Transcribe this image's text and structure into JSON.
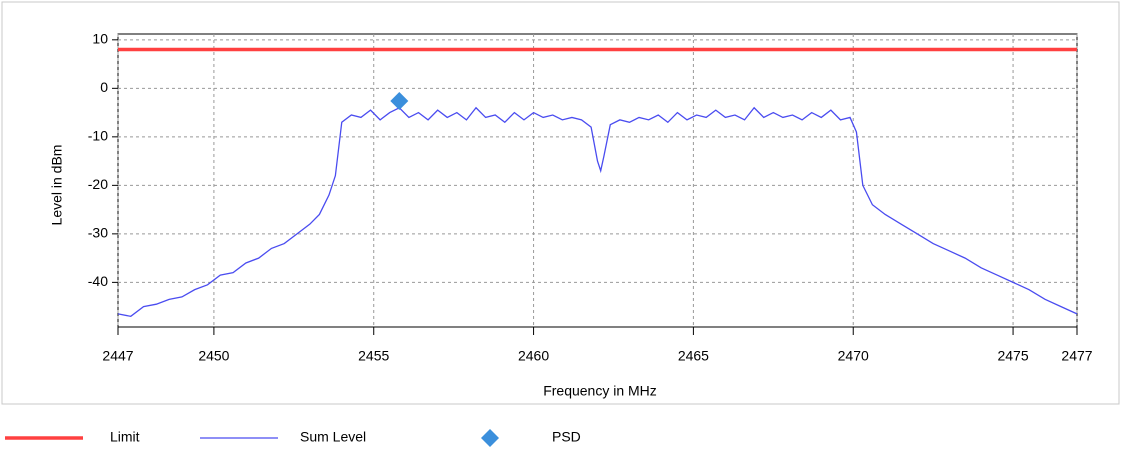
{
  "chart_data": {
    "type": "line",
    "x_label": "Frequency in MHz",
    "y_label": "Level in dBm",
    "xlim": [
      2447,
      2477
    ],
    "ylim": [
      -49.2,
      11.2
    ],
    "xticks": [
      2447,
      2450,
      2455,
      2460,
      2465,
      2470,
      2475,
      2477
    ],
    "yticks": [
      10,
      0,
      -10,
      -20,
      -30,
      -40
    ],
    "grid": true,
    "legend": "bottom",
    "series": [
      {
        "name": "Limit",
        "color": "#ff4040",
        "marker": "none",
        "x": [
          2447,
          2477
        ],
        "values": [
          8,
          8
        ]
      },
      {
        "name": "Sum Level",
        "color": "#4a4cf0",
        "marker": "none",
        "x": [
          2447,
          2447.4,
          2447.8,
          2448.2,
          2448.6,
          2449,
          2449.4,
          2449.8,
          2450.2,
          2450.6,
          2451,
          2451.4,
          2451.8,
          2452.2,
          2452.6,
          2453,
          2453.3,
          2453.6,
          2453.8,
          2454,
          2454.3,
          2454.6,
          2454.9,
          2455.2,
          2455.5,
          2455.8,
          2456.1,
          2456.4,
          2456.7,
          2457,
          2457.3,
          2457.6,
          2457.9,
          2458.2,
          2458.5,
          2458.8,
          2459.1,
          2459.4,
          2459.7,
          2460,
          2460.3,
          2460.6,
          2460.9,
          2461.2,
          2461.5,
          2461.8,
          2462,
          2462.1,
          2462.2,
          2462.4,
          2462.7,
          2463,
          2463.3,
          2463.6,
          2463.9,
          2464.2,
          2464.5,
          2464.8,
          2465.1,
          2465.4,
          2465.7,
          2466,
          2466.3,
          2466.6,
          2466.9,
          2467.2,
          2467.5,
          2467.8,
          2468.1,
          2468.4,
          2468.7,
          2469,
          2469.3,
          2469.6,
          2469.9,
          2470.1,
          2470.3,
          2470.6,
          2471,
          2471.5,
          2472,
          2472.5,
          2473,
          2473.5,
          2474,
          2474.5,
          2475,
          2475.5,
          2476,
          2476.5,
          2477
        ],
        "values": [
          -46.5,
          -47,
          -45,
          -44.5,
          -43.5,
          -43,
          -41.5,
          -40.5,
          -38.5,
          -38,
          -36,
          -35,
          -33,
          -32,
          -30,
          -28,
          -26,
          -22,
          -18,
          -7,
          -5.5,
          -6,
          -4.5,
          -6.5,
          -5,
          -4,
          -6,
          -5,
          -6.5,
          -4.5,
          -6,
          -5,
          -6.5,
          -4,
          -6,
          -5.5,
          -7,
          -5,
          -6.5,
          -5,
          -6,
          -5.5,
          -6.5,
          -6,
          -6.5,
          -8,
          -15,
          -17,
          -14,
          -7.5,
          -6.5,
          -7,
          -6,
          -6.5,
          -5.5,
          -7,
          -5,
          -6.5,
          -5.5,
          -6,
          -4.5,
          -6,
          -5.5,
          -6.5,
          -4,
          -6,
          -5,
          -6,
          -5.5,
          -6.5,
          -5,
          -6,
          -4.5,
          -6.5,
          -6,
          -9,
          -20,
          -24,
          -26,
          -28,
          -30,
          -32,
          -33.5,
          -35,
          -37,
          -38.5,
          -40,
          -41.5,
          -43.5,
          -45,
          -46.5
        ]
      },
      {
        "name": "PSD",
        "color": "#3b8fdc",
        "marker": "diamond",
        "x": [
          2455.8
        ],
        "values": [
          -2.6
        ]
      }
    ]
  }
}
